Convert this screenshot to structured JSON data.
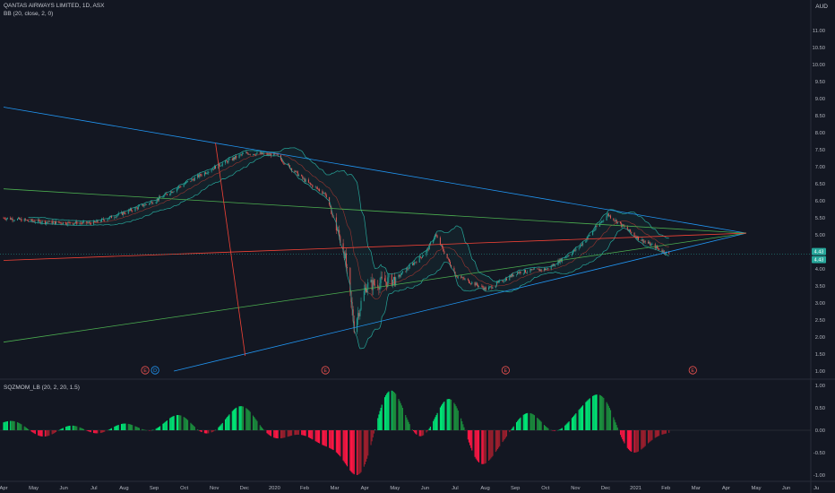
{
  "header": {
    "title": "QANTAS AIRWAYS LIMITED, 1D, ASX",
    "bb_indicator": "BB (20, close, 2, 0)",
    "squeeze_indicator": "SQZMOM_LB (20, 2, 20, 1.5)",
    "currency": "AUD"
  },
  "price_badges": [
    "4.43",
    "4.43"
  ],
  "earnings_marker": "E",
  "dividend_marker": "D",
  "colors": {
    "background": "#131722",
    "up": "#26a69a",
    "down": "#ef5350",
    "bb_band": "#26a69a",
    "trend_blue": "#2196f3",
    "trend_green": "#4caf50",
    "trend_red": "#f44336",
    "mom_up": "#00e676",
    "mom_down": "#ff1744"
  },
  "chart_data": [
    {
      "type": "candlestick",
      "title": "QANTAS AIRWAYS LIMITED, 1D, ASX",
      "y_tick_labels": [
        "1.00",
        "1.50",
        "2.00",
        "2.50",
        "3.00",
        "3.50",
        "4.00",
        "4.50",
        "5.00",
        "5.50",
        "6.00",
        "6.50",
        "7.00",
        "7.50",
        "8.00",
        "8.50",
        "9.00",
        "9.50",
        "10.00",
        "10.50",
        "11.00"
      ],
      "ylim": [
        1.0,
        11.0
      ],
      "x_tick_labels": [
        "Apr",
        "May",
        "Jun",
        "Jul",
        "Aug",
        "Sep",
        "Oct",
        "Nov",
        "Dec",
        "2020",
        "Feb",
        "Mar",
        "Apr",
        "May",
        "Jun",
        "Jul",
        "Aug",
        "Sep",
        "Oct",
        "Nov",
        "Dec",
        "2021",
        "Feb",
        "Mar",
        "Apr",
        "May",
        "Jun",
        "Ju"
      ],
      "price_path": [
        {
          "date": "2019-04-01",
          "close": 5.5
        },
        {
          "date": "2019-05-01",
          "close": 5.4
        },
        {
          "date": "2019-06-01",
          "close": 5.35
        },
        {
          "date": "2019-07-01",
          "close": 5.35
        },
        {
          "date": "2019-08-01",
          "close": 5.65
        },
        {
          "date": "2019-09-01",
          "close": 6.0
        },
        {
          "date": "2019-10-01",
          "close": 6.5
        },
        {
          "date": "2019-11-01",
          "close": 7.0
        },
        {
          "date": "2019-12-01",
          "close": 7.4
        },
        {
          "date": "2020-01-01",
          "close": 7.35
        },
        {
          "date": "2020-02-01",
          "close": 6.55
        },
        {
          "date": "2020-02-20",
          "close": 6.2
        },
        {
          "date": "2020-03-10",
          "close": 4.5
        },
        {
          "date": "2020-03-20",
          "close": 2.3
        },
        {
          "date": "2020-04-01",
          "close": 3.5
        },
        {
          "date": "2020-05-01",
          "close": 3.7
        },
        {
          "date": "2020-06-01",
          "close": 4.5
        },
        {
          "date": "2020-06-10",
          "close": 5.0
        },
        {
          "date": "2020-07-01",
          "close": 3.8
        },
        {
          "date": "2020-08-01",
          "close": 3.4
        },
        {
          "date": "2020-09-01",
          "close": 3.9
        },
        {
          "date": "2020-10-01",
          "close": 4.0
        },
        {
          "date": "2020-11-01",
          "close": 4.6
        },
        {
          "date": "2020-12-01",
          "close": 5.6
        },
        {
          "date": "2021-01-01",
          "close": 4.9
        },
        {
          "date": "2021-02-01",
          "close": 4.43
        }
      ],
      "last_close": 4.43,
      "trendlines": [
        {
          "color": "blue",
          "from": {
            "date": "2019-04-01",
            "price": 8.75
          },
          "to": {
            "date": "2021-04-20",
            "price": 5.05
          }
        },
        {
          "color": "blue",
          "from": {
            "date": "2019-09-20",
            "price": 1.0
          },
          "to": {
            "date": "2021-04-20",
            "price": 5.05
          }
        },
        {
          "color": "green",
          "from": {
            "date": "2019-04-01",
            "price": 6.35
          },
          "to": {
            "date": "2021-04-20",
            "price": 5.05
          }
        },
        {
          "color": "green",
          "from": {
            "date": "2019-04-01",
            "price": 1.85
          },
          "to": {
            "date": "2021-04-20",
            "price": 5.05
          }
        },
        {
          "color": "red",
          "from": {
            "date": "2019-04-01",
            "price": 4.25
          },
          "to": {
            "date": "2021-04-20",
            "price": 5.05
          }
        },
        {
          "color": "red",
          "from": {
            "date": "2019-11-01",
            "price": 7.7
          },
          "to": {
            "date": "2019-12-01",
            "price": 1.45
          }
        }
      ],
      "earnings_dates": [
        "2019-08-22",
        "2020-02-20",
        "2020-08-20",
        "2021-02-25"
      ],
      "dividend_dates": [
        "2019-09-01"
      ]
    },
    {
      "type": "bar",
      "title": "SQZMOM_LB (20, 2, 20, 1.5)",
      "y_tick_labels": [
        "-1.00",
        "-0.50",
        "0.00",
        "0.50",
        "1.00"
      ],
      "ylim": [
        -1.1,
        1.1
      ],
      "momentum_peaks": [
        {
          "date": "2019-04-10",
          "value": 0.22
        },
        {
          "date": "2019-05-12",
          "value": -0.18
        },
        {
          "date": "2019-06-08",
          "value": 0.15
        },
        {
          "date": "2019-07-05",
          "value": -0.12
        },
        {
          "date": "2019-08-01",
          "value": 0.18
        },
        {
          "date": "2019-08-28",
          "value": -0.08
        },
        {
          "date": "2019-09-25",
          "value": 0.38
        },
        {
          "date": "2019-10-20",
          "value": -0.15
        },
        {
          "date": "2019-11-27",
          "value": 0.55
        },
        {
          "date": "2020-01-01",
          "value": -0.2
        },
        {
          "date": "2020-02-20",
          "value": -0.3
        },
        {
          "date": "2020-03-25",
          "value": -1.05
        },
        {
          "date": "2020-04-25",
          "value": 1.0
        },
        {
          "date": "2020-05-25",
          "value": -0.3
        },
        {
          "date": "2020-06-25",
          "value": 0.8
        },
        {
          "date": "2020-07-25",
          "value": -0.8
        },
        {
          "date": "2020-08-25",
          "value": -0.2
        },
        {
          "date": "2020-09-10",
          "value": 0.5
        },
        {
          "date": "2020-10-10",
          "value": -0.15
        },
        {
          "date": "2020-11-01",
          "value": 0.3
        },
        {
          "date": "2020-11-25",
          "value": 0.75
        },
        {
          "date": "2020-12-25",
          "value": -0.55
        },
        {
          "date": "2021-01-25",
          "value": -0.05
        }
      ]
    }
  ]
}
